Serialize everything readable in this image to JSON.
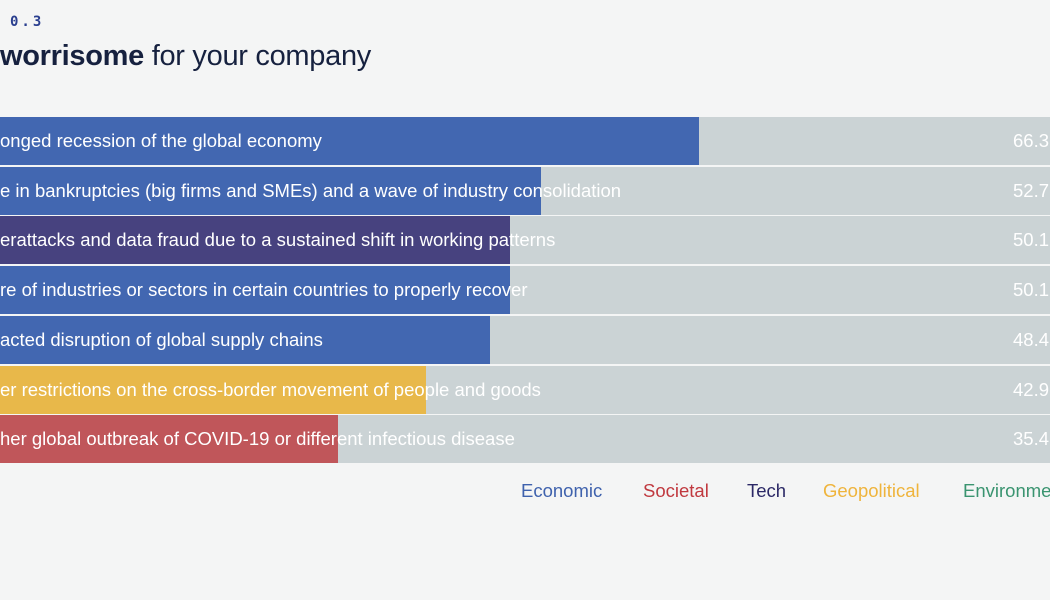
{
  "header": {
    "kicker": "0.3",
    "title_bold": "worrisome",
    "title_rest": " for your company"
  },
  "chart_data": {
    "type": "bar",
    "orientation": "horizontal",
    "categories": [
      "onged recession of the global economy",
      "e in bankruptcies (big firms and SMEs) and a wave of industry consolidation",
      "erattacks and data fraud due to a sustained shift in working patterns",
      "re of industries or sectors in certain countries to properly recover",
      "acted disruption of global supply chains",
      "er restrictions on the cross-border movement of people and goods",
      "her global outbreak of COVID-19 or different infectious disease"
    ],
    "values": [
      66.3,
      52.7,
      50.1,
      50.1,
      48.4,
      42.9,
      35.4
    ],
    "value_labels": [
      "66.3",
      "52.7",
      "50.1",
      "50.1",
      "48.4",
      "42.9",
      "35.4"
    ],
    "bar_category": [
      "Economic",
      "Economic",
      "Tech",
      "Economic",
      "Economic",
      "Geopolitical",
      "Societal"
    ],
    "legend": [
      {
        "name": "Economic",
        "color": "#3f62ad"
      },
      {
        "name": "Societal",
        "color": "#c0393f"
      },
      {
        "name": "Tech",
        "color": "#2b2866"
      },
      {
        "name": "Geopolitical",
        "color": "#efb43c"
      },
      {
        "name": "Environme",
        "color": "#3a9470"
      }
    ],
    "bar_colors": {
      "Economic": "#4267b1",
      "Tech": "#47427f",
      "Geopolitical": "#e8b84a",
      "Societal": "#c0565a"
    },
    "track_color": "#cbd3d5",
    "legend_placement": "bottom-right"
  }
}
